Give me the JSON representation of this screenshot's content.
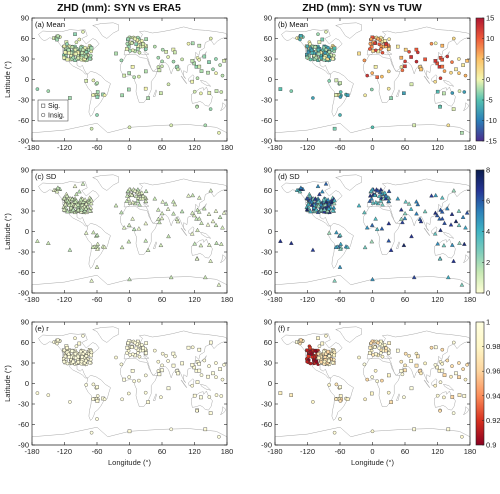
{
  "figure": {
    "col_titles": [
      "ZHD (mm): SYN vs ERA5",
      "ZHD (mm): SYN vs TUW"
    ],
    "xlabel": "Longitude (°)",
    "ylabel": "Latitude (°)",
    "x_ticks": [
      "-180",
      "-120",
      "-60",
      "0",
      "60",
      "120",
      "180"
    ],
    "y_ticks": [
      "90",
      "60",
      "30",
      "0",
      "-30",
      "-60",
      "-90"
    ],
    "legend": {
      "sig": "Sig.",
      "insig": "Insig."
    }
  },
  "chart_data": [
    {
      "id": "a",
      "label": "(a) Mean",
      "type": "scatter",
      "marker": "square",
      "xlim": [
        -180,
        180
      ],
      "ylim": [
        -90,
        90
      ],
      "colormap": "mean"
    },
    {
      "id": "b",
      "label": "(b) Mean",
      "type": "scatter",
      "marker": "square",
      "xlim": [
        -180,
        180
      ],
      "ylim": [
        -90,
        90
      ],
      "colormap": "mean"
    },
    {
      "id": "c",
      "label": "(c) SD",
      "type": "scatter",
      "marker": "triangle",
      "xlim": [
        -180,
        180
      ],
      "ylim": [
        -90,
        90
      ],
      "colormap": "sd"
    },
    {
      "id": "d",
      "label": "(d) SD",
      "type": "scatter",
      "marker": "triangle",
      "xlim": [
        -180,
        180
      ],
      "ylim": [
        -90,
        90
      ],
      "colormap": "sd"
    },
    {
      "id": "e",
      "label": "(e) r",
      "type": "scatter",
      "marker": "square",
      "xlim": [
        -180,
        180
      ],
      "ylim": [
        -90,
        90
      ],
      "colormap": "r"
    },
    {
      "id": "f",
      "label": "(f) r",
      "type": "scatter",
      "marker": "square",
      "xlim": [
        -180,
        180
      ],
      "ylim": [
        -90,
        90
      ],
      "colormap": "r"
    }
  ],
  "colorbars": [
    {
      "id": "mean",
      "ticks": [
        "15",
        "10",
        "5",
        "0",
        "-5",
        "-10",
        "-15"
      ],
      "range": [
        -15,
        15
      ],
      "colors": [
        "#4a2d8c",
        "#2b7fb8",
        "#55c1b0",
        "#f4f7b0",
        "#fcc166",
        "#ee5a3a",
        "#b01630"
      ]
    },
    {
      "id": "sd",
      "ticks": [
        "8",
        "6",
        "4",
        "2",
        "0"
      ],
      "range": [
        0,
        8
      ],
      "colors": [
        "#ffffd6",
        "#c8e9b4",
        "#7fccbb",
        "#40b5c4",
        "#2c7fb8",
        "#253494",
        "#0b1d4e"
      ]
    },
    {
      "id": "r",
      "ticks": [
        "1",
        "0.98",
        "0.96",
        "0.94",
        "0.92",
        "0.9"
      ],
      "range": [
        0.9,
        1
      ],
      "colors": [
        "#8b0020",
        "#d7301f",
        "#fc8d59",
        "#fdd49e",
        "#fff7c6",
        "#ffffe0"
      ]
    }
  ]
}
